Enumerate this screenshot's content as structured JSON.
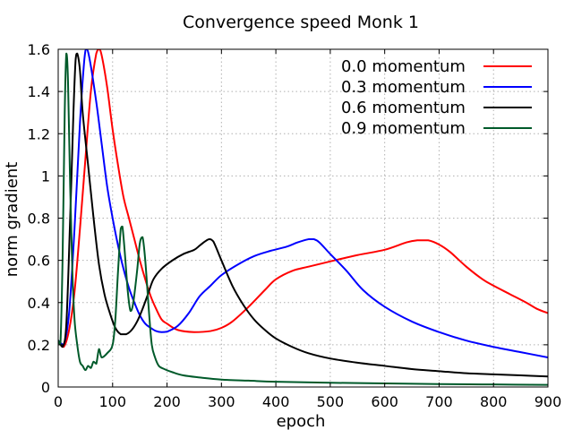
{
  "chart_data": {
    "type": "line",
    "title": "Convergence speed Monk 1",
    "xlabel": "epoch",
    "ylabel": "norm gradient",
    "xlim": [
      0,
      900
    ],
    "ylim": [
      0,
      1.6
    ],
    "grid": true,
    "legend_position": "top-right",
    "x_ticks": [
      0,
      100,
      200,
      300,
      400,
      500,
      600,
      700,
      800,
      900
    ],
    "x_tick_labels": [
      "0",
      "100",
      "200",
      "300",
      "400",
      "500",
      "600",
      "700",
      "800",
      "900"
    ],
    "y_ticks": [
      0,
      0.2,
      0.4,
      0.6,
      0.8,
      1.0,
      1.2,
      1.4,
      1.6
    ],
    "y_tick_labels": [
      "0",
      "0.2",
      "0.4",
      "0.6",
      "0.8",
      "1",
      "1.2",
      "1.4",
      "1.6"
    ],
    "series": [
      {
        "name": "0.0 momentum",
        "color": "#ff0000",
        "points": [
          [
            0,
            0.22
          ],
          [
            10,
            0.19
          ],
          [
            20,
            0.27
          ],
          [
            30,
            0.45
          ],
          [
            40,
            0.75
          ],
          [
            50,
            1.08
          ],
          [
            60,
            1.4
          ],
          [
            70,
            1.58
          ],
          [
            75,
            1.6
          ],
          [
            80,
            1.57
          ],
          [
            90,
            1.42
          ],
          [
            100,
            1.22
          ],
          [
            110,
            1.05
          ],
          [
            120,
            0.9
          ],
          [
            130,
            0.8
          ],
          [
            140,
            0.7
          ],
          [
            150,
            0.6
          ],
          [
            160,
            0.51
          ],
          [
            170,
            0.43
          ],
          [
            180,
            0.37
          ],
          [
            190,
            0.32
          ],
          [
            200,
            0.3
          ],
          [
            220,
            0.27
          ],
          [
            250,
            0.26
          ],
          [
            280,
            0.265
          ],
          [
            300,
            0.28
          ],
          [
            320,
            0.31
          ],
          [
            350,
            0.38
          ],
          [
            380,
            0.46
          ],
          [
            400,
            0.51
          ],
          [
            430,
            0.55
          ],
          [
            460,
            0.57
          ],
          [
            500,
            0.595
          ],
          [
            550,
            0.625
          ],
          [
            600,
            0.65
          ],
          [
            640,
            0.685
          ],
          [
            660,
            0.695
          ],
          [
            680,
            0.695
          ],
          [
            700,
            0.675
          ],
          [
            720,
            0.64
          ],
          [
            750,
            0.57
          ],
          [
            780,
            0.51
          ],
          [
            800,
            0.48
          ],
          [
            830,
            0.44
          ],
          [
            860,
            0.4
          ],
          [
            880,
            0.37
          ],
          [
            900,
            0.35
          ]
        ]
      },
      {
        "name": "0.3 momentum",
        "color": "#0000ff",
        "points": [
          [
            0,
            0.22
          ],
          [
            10,
            0.2
          ],
          [
            20,
            0.35
          ],
          [
            30,
            0.75
          ],
          [
            40,
            1.25
          ],
          [
            48,
            1.55
          ],
          [
            52,
            1.6
          ],
          [
            58,
            1.55
          ],
          [
            70,
            1.35
          ],
          [
            80,
            1.15
          ],
          [
            90,
            0.95
          ],
          [
            100,
            0.8
          ],
          [
            110,
            0.67
          ],
          [
            120,
            0.56
          ],
          [
            130,
            0.47
          ],
          [
            140,
            0.4
          ],
          [
            150,
            0.34
          ],
          [
            160,
            0.3
          ],
          [
            170,
            0.28
          ],
          [
            180,
            0.265
          ],
          [
            190,
            0.26
          ],
          [
            200,
            0.262
          ],
          [
            220,
            0.29
          ],
          [
            240,
            0.35
          ],
          [
            260,
            0.43
          ],
          [
            280,
            0.48
          ],
          [
            300,
            0.53
          ],
          [
            330,
            0.58
          ],
          [
            360,
            0.62
          ],
          [
            390,
            0.645
          ],
          [
            420,
            0.665
          ],
          [
            440,
            0.685
          ],
          [
            460,
            0.7
          ],
          [
            470,
            0.7
          ],
          [
            480,
            0.685
          ],
          [
            500,
            0.63
          ],
          [
            530,
            0.55
          ],
          [
            560,
            0.46
          ],
          [
            600,
            0.38
          ],
          [
            650,
            0.31
          ],
          [
            700,
            0.26
          ],
          [
            750,
            0.22
          ],
          [
            800,
            0.19
          ],
          [
            850,
            0.165
          ],
          [
            900,
            0.14
          ]
        ]
      },
      {
        "name": "0.6 momentum",
        "color": "#000000",
        "points": [
          [
            0,
            0.22
          ],
          [
            8,
            0.19
          ],
          [
            15,
            0.3
          ],
          [
            22,
            0.8
          ],
          [
            28,
            1.3
          ],
          [
            32,
            1.55
          ],
          [
            35,
            1.58
          ],
          [
            40,
            1.5
          ],
          [
            45,
            1.3
          ],
          [
            55,
            1.05
          ],
          [
            65,
            0.8
          ],
          [
            75,
            0.58
          ],
          [
            85,
            0.44
          ],
          [
            95,
            0.35
          ],
          [
            105,
            0.28
          ],
          [
            115,
            0.25
          ],
          [
            125,
            0.25
          ],
          [
            135,
            0.27
          ],
          [
            145,
            0.31
          ],
          [
            155,
            0.37
          ],
          [
            165,
            0.44
          ],
          [
            175,
            0.51
          ],
          [
            190,
            0.56
          ],
          [
            210,
            0.6
          ],
          [
            230,
            0.63
          ],
          [
            250,
            0.65
          ],
          [
            260,
            0.67
          ],
          [
            270,
            0.69
          ],
          [
            278,
            0.7
          ],
          [
            285,
            0.69
          ],
          [
            300,
            0.6
          ],
          [
            320,
            0.48
          ],
          [
            340,
            0.39
          ],
          [
            360,
            0.32
          ],
          [
            380,
            0.27
          ],
          [
            400,
            0.23
          ],
          [
            430,
            0.19
          ],
          [
            460,
            0.16
          ],
          [
            500,
            0.135
          ],
          [
            550,
            0.115
          ],
          [
            600,
            0.1
          ],
          [
            650,
            0.085
          ],
          [
            700,
            0.075
          ],
          [
            750,
            0.065
          ],
          [
            800,
            0.06
          ],
          [
            850,
            0.055
          ],
          [
            900,
            0.05
          ]
        ]
      },
      {
        "name": "0.9 momentum",
        "color": "#005a2a",
        "points": [
          [
            0,
            0.22
          ],
          [
            4,
            0.2
          ],
          [
            8,
            0.6
          ],
          [
            12,
            1.3
          ],
          [
            15,
            1.58
          ],
          [
            18,
            1.45
          ],
          [
            22,
            0.95
          ],
          [
            26,
            0.55
          ],
          [
            30,
            0.32
          ],
          [
            35,
            0.2
          ],
          [
            40,
            0.12
          ],
          [
            45,
            0.1
          ],
          [
            50,
            0.08
          ],
          [
            55,
            0.1
          ],
          [
            60,
            0.09
          ],
          [
            65,
            0.12
          ],
          [
            70,
            0.11
          ],
          [
            75,
            0.18
          ],
          [
            80,
            0.14
          ],
          [
            90,
            0.16
          ],
          [
            100,
            0.2
          ],
          [
            105,
            0.32
          ],
          [
            110,
            0.55
          ],
          [
            115,
            0.75
          ],
          [
            118,
            0.76
          ],
          [
            122,
            0.65
          ],
          [
            128,
            0.45
          ],
          [
            133,
            0.36
          ],
          [
            138,
            0.4
          ],
          [
            145,
            0.55
          ],
          [
            150,
            0.68
          ],
          [
            155,
            0.71
          ],
          [
            160,
            0.6
          ],
          [
            167,
            0.35
          ],
          [
            172,
            0.2
          ],
          [
            178,
            0.14
          ],
          [
            185,
            0.1
          ],
          [
            195,
            0.085
          ],
          [
            210,
            0.07
          ],
          [
            230,
            0.055
          ],
          [
            260,
            0.045
          ],
          [
            300,
            0.035
          ],
          [
            350,
            0.03
          ],
          [
            400,
            0.025
          ],
          [
            500,
            0.02
          ],
          [
            600,
            0.017
          ],
          [
            700,
            0.014
          ],
          [
            800,
            0.012
          ],
          [
            900,
            0.01
          ]
        ]
      }
    ]
  }
}
